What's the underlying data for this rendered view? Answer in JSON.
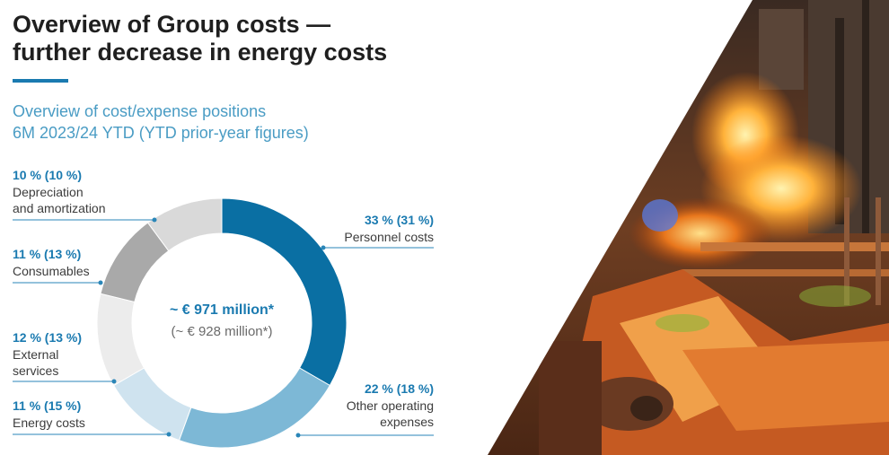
{
  "page": {
    "title_line1": "Overview of Group costs —",
    "title_line2": "further decrease in energy costs",
    "subtitle_line1": "Overview of cost/expense positions",
    "subtitle_line2": "6M 2023/24 YTD (YTD prior-year figures)"
  },
  "chart_data": {
    "type": "pie",
    "donut": true,
    "center_total": "~ € 971 million*",
    "center_prior": "(~ € 928 million*)",
    "slices": [
      {
        "label_lines": [
          "Personnel costs"
        ],
        "value_text": "33 % (31 %)",
        "value": 33,
        "prior": 31,
        "color": "#0a6fa3"
      },
      {
        "label_lines": [
          "Other operating",
          "expenses"
        ],
        "value_text": "22 % (18 %)",
        "value": 22,
        "prior": 18,
        "color": "#7db8d6"
      },
      {
        "label_lines": [
          "Energy costs"
        ],
        "value_text": "11 % (15 %)",
        "value": 11,
        "prior": 15,
        "color": "#cfe3ef"
      },
      {
        "label_lines": [
          "External",
          "services"
        ],
        "value_text": "12 % (13 %)",
        "value": 12,
        "prior": 13,
        "color": "#ececec"
      },
      {
        "label_lines": [
          "Consumables"
        ],
        "value_text": "11 % (13 %)",
        "value": 11,
        "prior": 13,
        "color": "#a9a9a9"
      },
      {
        "label_lines": [
          "Depreciation",
          "and amortization"
        ],
        "value_text": "10 % (10 %)",
        "value": 10,
        "prior": 10,
        "color": "#d9d9d9"
      }
    ],
    "colors": {
      "label_value": "#1a7ab0",
      "label_text": "#3c3c3c",
      "leader": "#2a86b8"
    }
  }
}
